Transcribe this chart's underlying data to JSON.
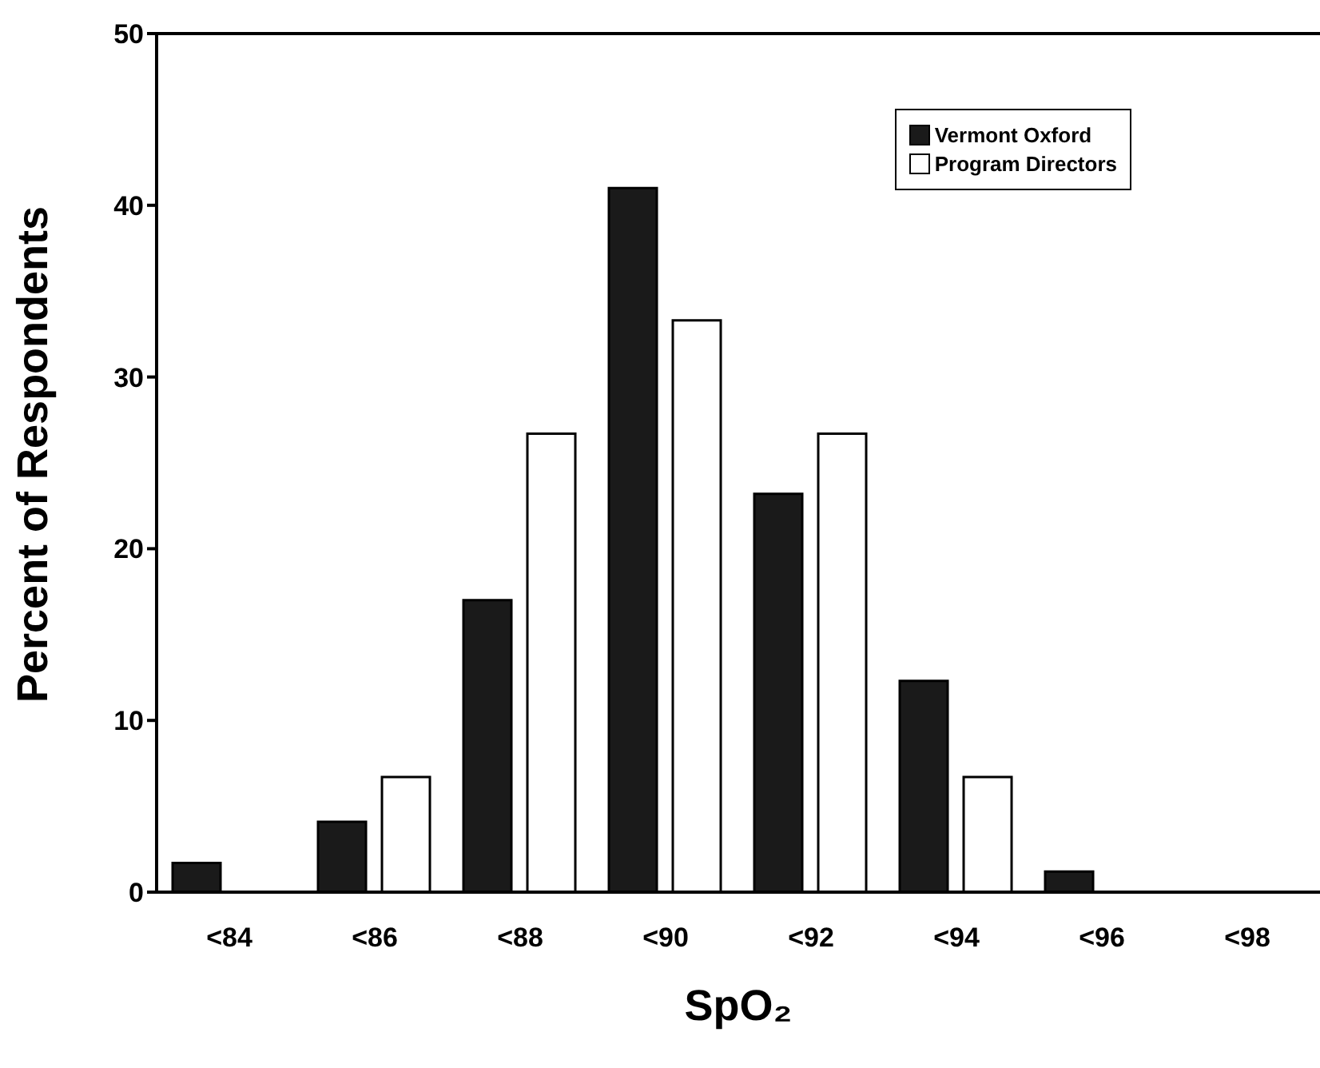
{
  "chart_data": {
    "type": "bar",
    "xlabel": "SpO₂",
    "ylabel": "Percent of Respondents",
    "categories": [
      "<84",
      "<86",
      "<88",
      "<90",
      "<92",
      "<94",
      "<96",
      "<98"
    ],
    "series": [
      {
        "name": "Vermont Oxford",
        "color": "#1a1a1a",
        "values": [
          1.7,
          4.1,
          17,
          41,
          23.2,
          12.3,
          1.2,
          0
        ]
      },
      {
        "name": "Program Directors",
        "color": "#ffffff",
        "values": [
          0,
          6.7,
          26.7,
          33.3,
          26.7,
          6.7,
          0,
          0
        ]
      }
    ],
    "ylim": [
      0,
      50
    ],
    "yticks": [
      0,
      10,
      20,
      30,
      40,
      50
    ],
    "grid": false,
    "legend": "top right"
  }
}
